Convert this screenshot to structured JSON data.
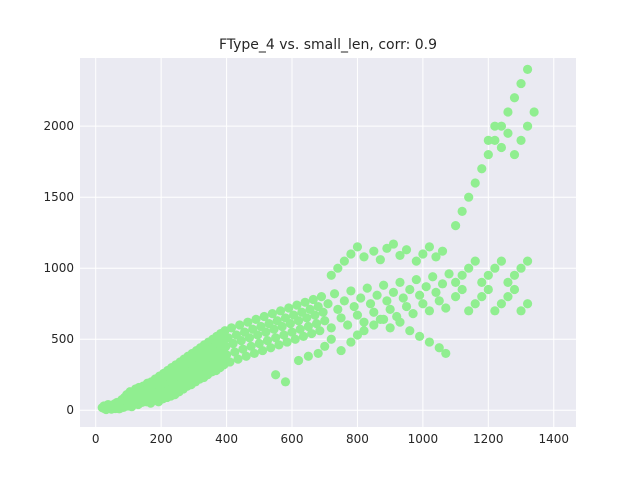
{
  "chart_data": {
    "type": "scatter",
    "title": "FType_4 vs. small_len, corr: 0.9",
    "xlabel": "",
    "ylabel": "",
    "xlim": [
      -48,
      1468
    ],
    "ylim": [
      -118,
      2480
    ],
    "x_ticks": [
      0,
      200,
      400,
      600,
      800,
      1000,
      1200,
      1400
    ],
    "y_ticks": [
      0,
      500,
      1000,
      1500,
      2000
    ],
    "x_tick_labels": [
      "0",
      "200",
      "400",
      "600",
      "800",
      "1000",
      "1200",
      "1400"
    ],
    "y_tick_labels": [
      "0",
      "500",
      "1000",
      "1500",
      "2000"
    ],
    "grid": true,
    "marker_color": "#90ee90",
    "background_color": "#eaeaf2",
    "points": [
      [
        20,
        18
      ],
      [
        25,
        30
      ],
      [
        28,
        10
      ],
      [
        32,
        5
      ],
      [
        35,
        22
      ],
      [
        38,
        40
      ],
      [
        42,
        15
      ],
      [
        45,
        28
      ],
      [
        48,
        8
      ],
      [
        50,
        35
      ],
      [
        55,
        20
      ],
      [
        58,
        45
      ],
      [
        60,
        12
      ],
      [
        62,
        30
      ],
      [
        65,
        55
      ],
      [
        68,
        25
      ],
      [
        70,
        40
      ],
      [
        72,
        10
      ],
      [
        75,
        60
      ],
      [
        78,
        30
      ],
      [
        80,
        75
      ],
      [
        82,
        50
      ],
      [
        85,
        20
      ],
      [
        88,
        90
      ],
      [
        90,
        40
      ],
      [
        92,
        65
      ],
      [
        95,
        110
      ],
      [
        98,
        30
      ],
      [
        100,
        80
      ],
      [
        102,
        55
      ],
      [
        105,
        130
      ],
      [
        108,
        70
      ],
      [
        110,
        25
      ],
      [
        112,
        95
      ],
      [
        115,
        60
      ],
      [
        118,
        120
      ],
      [
        120,
        45
      ],
      [
        122,
        150
      ],
      [
        125,
        85
      ],
      [
        128,
        110
      ],
      [
        130,
        40
      ],
      [
        132,
        160
      ],
      [
        135,
        70
      ],
      [
        138,
        130
      ],
      [
        140,
        95
      ],
      [
        142,
        55
      ],
      [
        145,
        170
      ],
      [
        148,
        110
      ],
      [
        150,
        80
      ],
      [
        152,
        140
      ],
      [
        155,
        60
      ],
      [
        158,
        190
      ],
      [
        160,
        120
      ],
      [
        162,
        90
      ],
      [
        165,
        160
      ],
      [
        168,
        50
      ],
      [
        170,
        200
      ],
      [
        172,
        130
      ],
      [
        175,
        100
      ],
      [
        178,
        170
      ],
      [
        180,
        70
      ],
      [
        182,
        220
      ],
      [
        185,
        140
      ],
      [
        188,
        110
      ],
      [
        190,
        180
      ],
      [
        192,
        60
      ],
      [
        195,
        240
      ],
      [
        198,
        150
      ],
      [
        200,
        120
      ],
      [
        202,
        200
      ],
      [
        205,
        80
      ],
      [
        208,
        260
      ],
      [
        210,
        170
      ],
      [
        212,
        130
      ],
      [
        215,
        210
      ],
      [
        218,
        90
      ],
      [
        220,
        280
      ],
      [
        222,
        180
      ],
      [
        225,
        140
      ],
      [
        228,
        230
      ],
      [
        230,
        100
      ],
      [
        232,
        300
      ],
      [
        235,
        190
      ],
      [
        238,
        150
      ],
      [
        240,
        250
      ],
      [
        242,
        110
      ],
      [
        245,
        320
      ],
      [
        248,
        210
      ],
      [
        250,
        170
      ],
      [
        252,
        270
      ],
      [
        255,
        130
      ],
      [
        258,
        340
      ],
      [
        260,
        230
      ],
      [
        262,
        190
      ],
      [
        265,
        290
      ],
      [
        268,
        150
      ],
      [
        270,
        360
      ],
      [
        272,
        250
      ],
      [
        275,
        210
      ],
      [
        278,
        310
      ],
      [
        280,
        170
      ],
      [
        282,
        380
      ],
      [
        285,
        270
      ],
      [
        288,
        230
      ],
      [
        290,
        330
      ],
      [
        292,
        180
      ],
      [
        295,
        400
      ],
      [
        298,
        290
      ],
      [
        300,
        240
      ],
      [
        302,
        350
      ],
      [
        305,
        200
      ],
      [
        308,
        420
      ],
      [
        310,
        310
      ],
      [
        312,
        260
      ],
      [
        315,
        370
      ],
      [
        318,
        220
      ],
      [
        320,
        440
      ],
      [
        322,
        330
      ],
      [
        325,
        280
      ],
      [
        328,
        390
      ],
      [
        330,
        230
      ],
      [
        332,
        460
      ],
      [
        335,
        350
      ],
      [
        338,
        300
      ],
      [
        340,
        410
      ],
      [
        342,
        250
      ],
      [
        345,
        480
      ],
      [
        348,
        370
      ],
      [
        350,
        310
      ],
      [
        352,
        430
      ],
      [
        355,
        270
      ],
      [
        358,
        500
      ],
      [
        360,
        390
      ],
      [
        362,
        330
      ],
      [
        365,
        450
      ],
      [
        368,
        280
      ],
      [
        370,
        520
      ],
      [
        372,
        410
      ],
      [
        375,
        350
      ],
      [
        378,
        470
      ],
      [
        380,
        300
      ],
      [
        382,
        540
      ],
      [
        385,
        430
      ],
      [
        388,
        370
      ],
      [
        390,
        490
      ],
      [
        392,
        320
      ],
      [
        395,
        560
      ],
      [
        398,
        450
      ],
      [
        400,
        390
      ],
      [
        405,
        510
      ],
      [
        410,
        340
      ],
      [
        415,
        580
      ],
      [
        420,
        470
      ],
      [
        425,
        410
      ],
      [
        430,
        530
      ],
      [
        435,
        360
      ],
      [
        440,
        600
      ],
      [
        445,
        490
      ],
      [
        450,
        430
      ],
      [
        455,
        550
      ],
      [
        460,
        380
      ],
      [
        465,
        620
      ],
      [
        470,
        510
      ],
      [
        475,
        450
      ],
      [
        480,
        570
      ],
      [
        485,
        400
      ],
      [
        490,
        640
      ],
      [
        495,
        530
      ],
      [
        500,
        470
      ],
      [
        505,
        590
      ],
      [
        510,
        420
      ],
      [
        515,
        660
      ],
      [
        520,
        550
      ],
      [
        525,
        490
      ],
      [
        530,
        610
      ],
      [
        535,
        440
      ],
      [
        540,
        680
      ],
      [
        545,
        570
      ],
      [
        550,
        510
      ],
      [
        555,
        630
      ],
      [
        560,
        460
      ],
      [
        565,
        700
      ],
      [
        570,
        590
      ],
      [
        575,
        530
      ],
      [
        580,
        650
      ],
      [
        585,
        480
      ],
      [
        590,
        720
      ],
      [
        595,
        610
      ],
      [
        600,
        550
      ],
      [
        605,
        670
      ],
      [
        610,
        500
      ],
      [
        615,
        740
      ],
      [
        620,
        630
      ],
      [
        625,
        570
      ],
      [
        630,
        690
      ],
      [
        635,
        520
      ],
      [
        640,
        760
      ],
      [
        645,
        650
      ],
      [
        650,
        590
      ],
      [
        655,
        710
      ],
      [
        660,
        540
      ],
      [
        665,
        780
      ],
      [
        670,
        670
      ],
      [
        675,
        610
      ],
      [
        680,
        730
      ],
      [
        685,
        560
      ],
      [
        690,
        800
      ],
      [
        695,
        690
      ],
      [
        700,
        630
      ],
      [
        710,
        750
      ],
      [
        720,
        580
      ],
      [
        730,
        820
      ],
      [
        740,
        710
      ],
      [
        750,
        650
      ],
      [
        760,
        770
      ],
      [
        770,
        600
      ],
      [
        780,
        840
      ],
      [
        790,
        730
      ],
      [
        800,
        670
      ],
      [
        810,
        790
      ],
      [
        820,
        620
      ],
      [
        830,
        860
      ],
      [
        840,
        750
      ],
      [
        850,
        690
      ],
      [
        860,
        810
      ],
      [
        870,
        640
      ],
      [
        880,
        880
      ],
      [
        890,
        770
      ],
      [
        900,
        710
      ],
      [
        910,
        830
      ],
      [
        920,
        660
      ],
      [
        930,
        900
      ],
      [
        940,
        790
      ],
      [
        950,
        730
      ],
      [
        960,
        850
      ],
      [
        970,
        680
      ],
      [
        980,
        920
      ],
      [
        990,
        810
      ],
      [
        1000,
        750
      ],
      [
        1010,
        870
      ],
      [
        1020,
        700
      ],
      [
        1030,
        940
      ],
      [
        1040,
        830
      ],
      [
        1050,
        770
      ],
      [
        1060,
        890
      ],
      [
        1070,
        720
      ],
      [
        1080,
        960
      ],
      [
        720,
        950
      ],
      [
        740,
        1000
      ],
      [
        760,
        1050
      ],
      [
        780,
        1100
      ],
      [
        800,
        1150
      ],
      [
        820,
        1080
      ],
      [
        850,
        1120
      ],
      [
        870,
        1060
      ],
      [
        890,
        1140
      ],
      [
        910,
        1170
      ],
      [
        930,
        1090
      ],
      [
        950,
        1130
      ],
      [
        980,
        1050
      ],
      [
        1000,
        1100
      ],
      [
        1020,
        1150
      ],
      [
        1040,
        1080
      ],
      [
        1060,
        1120
      ],
      [
        550,
        250
      ],
      [
        580,
        200
      ],
      [
        620,
        350
      ],
      [
        650,
        380
      ],
      [
        680,
        400
      ],
      [
        700,
        450
      ],
      [
        720,
        500
      ],
      [
        750,
        420
      ],
      [
        780,
        480
      ],
      [
        800,
        530
      ],
      [
        820,
        560
      ],
      [
        850,
        600
      ],
      [
        880,
        640
      ],
      [
        900,
        580
      ],
      [
        930,
        620
      ],
      [
        960,
        560
      ],
      [
        990,
        520
      ],
      [
        1020,
        480
      ],
      [
        1050,
        440
      ],
      [
        1070,
        400
      ],
      [
        1100,
        900
      ],
      [
        1120,
        950
      ],
      [
        1140,
        1000
      ],
      [
        1160,
        1050
      ],
      [
        1180,
        900
      ],
      [
        1200,
        950
      ],
      [
        1220,
        1000
      ],
      [
        1240,
        1050
      ],
      [
        1260,
        900
      ],
      [
        1280,
        950
      ],
      [
        1300,
        1000
      ],
      [
        1320,
        1050
      ],
      [
        1100,
        800
      ],
      [
        1120,
        850
      ],
      [
        1140,
        700
      ],
      [
        1160,
        750
      ],
      [
        1180,
        800
      ],
      [
        1200,
        850
      ],
      [
        1220,
        700
      ],
      [
        1240,
        750
      ],
      [
        1260,
        800
      ],
      [
        1280,
        850
      ],
      [
        1300,
        700
      ],
      [
        1320,
        750
      ],
      [
        1100,
        1300
      ],
      [
        1120,
        1400
      ],
      [
        1140,
        1500
      ],
      [
        1160,
        1600
      ],
      [
        1180,
        1700
      ],
      [
        1200,
        1800
      ],
      [
        1220,
        1900
      ],
      [
        1240,
        2000
      ],
      [
        1260,
        2100
      ],
      [
        1280,
        2200
      ],
      [
        1300,
        2300
      ],
      [
        1320,
        2400
      ],
      [
        1200,
        1900
      ],
      [
        1220,
        2000
      ],
      [
        1240,
        1850
      ],
      [
        1260,
        1950
      ],
      [
        1280,
        1800
      ],
      [
        1300,
        1900
      ],
      [
        1320,
        2000
      ],
      [
        1340,
        2100
      ]
    ]
  }
}
